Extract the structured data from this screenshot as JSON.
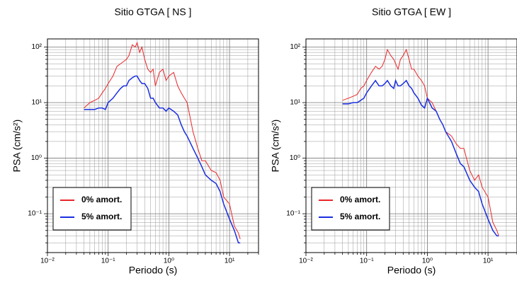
{
  "chart_data": [
    {
      "type": "line",
      "title": "Sitio GTGA [ NS ]",
      "xlabel": "Periodo (s)",
      "ylabel": "PSA (cm/s²)",
      "xscale": "log",
      "yscale": "log",
      "grid": true,
      "legend": "lower left",
      "xlim": [
        0.01,
        30
      ],
      "ylim": [
        0.02,
        140
      ],
      "xticks": [
        {
          "value": 0.01,
          "label": "10⁻²"
        },
        {
          "value": 0.1,
          "label": "10⁻¹"
        },
        {
          "value": 1,
          "label": "10⁰"
        },
        {
          "value": 10,
          "label": "10¹"
        }
      ],
      "yticks": [
        {
          "value": 0.1,
          "label": "10⁻¹"
        },
        {
          "value": 1,
          "label": "10⁰"
        },
        {
          "value": 10,
          "label": "10¹"
        },
        {
          "value": 100,
          "label": "10²"
        }
      ],
      "x": [
        0.04,
        0.05,
        0.06,
        0.07,
        0.08,
        0.09,
        0.1,
        0.12,
        0.14,
        0.16,
        0.18,
        0.2,
        0.22,
        0.25,
        0.28,
        0.3,
        0.33,
        0.36,
        0.4,
        0.45,
        0.5,
        0.55,
        0.6,
        0.7,
        0.8,
        0.9,
        1.0,
        1.2,
        1.4,
        1.6,
        1.8,
        2,
        2.5,
        3,
        3.5,
        4,
        5,
        6,
        7,
        8,
        10,
        12,
        14,
        15
      ],
      "series": [
        {
          "name": "0% amort.",
          "color": "#e8262a",
          "values": [
            8,
            10,
            11,
            12,
            15,
            18,
            22,
            30,
            45,
            50,
            55,
            60,
            70,
            110,
            100,
            120,
            80,
            100,
            60,
            40,
            35,
            40,
            20,
            35,
            40,
            25,
            30,
            35,
            20,
            15,
            12,
            10,
            3,
            1.5,
            0.9,
            0.9,
            0.6,
            0.55,
            0.4,
            0.2,
            0.15,
            0.06,
            0.045,
            0.035
          ]
        },
        {
          "name": "5% amort.",
          "color": "#1a2ee0",
          "values": [
            7.5,
            7.5,
            7.5,
            8,
            8,
            7.5,
            10,
            12,
            15,
            18,
            20,
            20,
            25,
            28,
            30,
            30,
            25,
            22,
            22,
            18,
            12,
            12,
            10,
            8,
            8,
            7,
            8,
            7,
            6,
            4,
            3,
            2.5,
            1.5,
            1,
            0.7,
            0.5,
            0.4,
            0.35,
            0.25,
            0.15,
            0.08,
            0.05,
            0.03,
            0.03
          ]
        }
      ]
    },
    {
      "type": "line",
      "title": "Sitio GTGA [ EW ]",
      "xlabel": "Periodo (s)",
      "ylabel": "PSA (cm/s²)",
      "xscale": "log",
      "yscale": "log",
      "grid": true,
      "legend": "lower left",
      "xlim": [
        0.01,
        30
      ],
      "ylim": [
        0.02,
        140
      ],
      "xticks": [
        {
          "value": 0.01,
          "label": "10⁻²"
        },
        {
          "value": 0.1,
          "label": "10⁻¹"
        },
        {
          "value": 1,
          "label": "10⁰"
        },
        {
          "value": 10,
          "label": "10¹"
        }
      ],
      "yticks": [
        {
          "value": 0.1,
          "label": "10⁻¹"
        },
        {
          "value": 1,
          "label": "10⁰"
        },
        {
          "value": 10,
          "label": "10¹"
        },
        {
          "value": 100,
          "label": "10²"
        }
      ],
      "x": [
        0.04,
        0.05,
        0.06,
        0.07,
        0.08,
        0.09,
        0.1,
        0.12,
        0.14,
        0.16,
        0.18,
        0.2,
        0.22,
        0.25,
        0.28,
        0.3,
        0.33,
        0.36,
        0.4,
        0.45,
        0.5,
        0.55,
        0.6,
        0.7,
        0.8,
        0.9,
        1.0,
        1.2,
        1.4,
        1.6,
        1.8,
        2,
        2.5,
        3,
        3.5,
        4,
        5,
        6,
        7,
        8,
        10,
        12,
        14,
        15
      ],
      "series": [
        {
          "name": "0% amort.",
          "color": "#e8262a",
          "values": [
            11,
            12,
            13,
            14,
            18,
            20,
            25,
            35,
            45,
            40,
            45,
            60,
            90,
            70,
            60,
            50,
            40,
            60,
            70,
            90,
            60,
            40,
            40,
            30,
            25,
            20,
            12,
            10,
            7,
            5,
            4,
            3,
            2.5,
            1.8,
            1.5,
            1.5,
            0.6,
            0.4,
            0.5,
            0.3,
            0.2,
            0.07,
            0.05,
            0.04
          ]
        },
        {
          "name": "5% amort.",
          "color": "#1a2ee0",
          "values": [
            9.5,
            9.5,
            10,
            10,
            11,
            12,
            15,
            20,
            25,
            20,
            20,
            22,
            25,
            20,
            18,
            25,
            20,
            20,
            22,
            25,
            20,
            18,
            15,
            12,
            9,
            8,
            12,
            8,
            7,
            5,
            4,
            3,
            2,
            1.2,
            0.8,
            0.7,
            0.4,
            0.3,
            0.25,
            0.15,
            0.08,
            0.05,
            0.04,
            0.04
          ]
        }
      ]
    }
  ]
}
